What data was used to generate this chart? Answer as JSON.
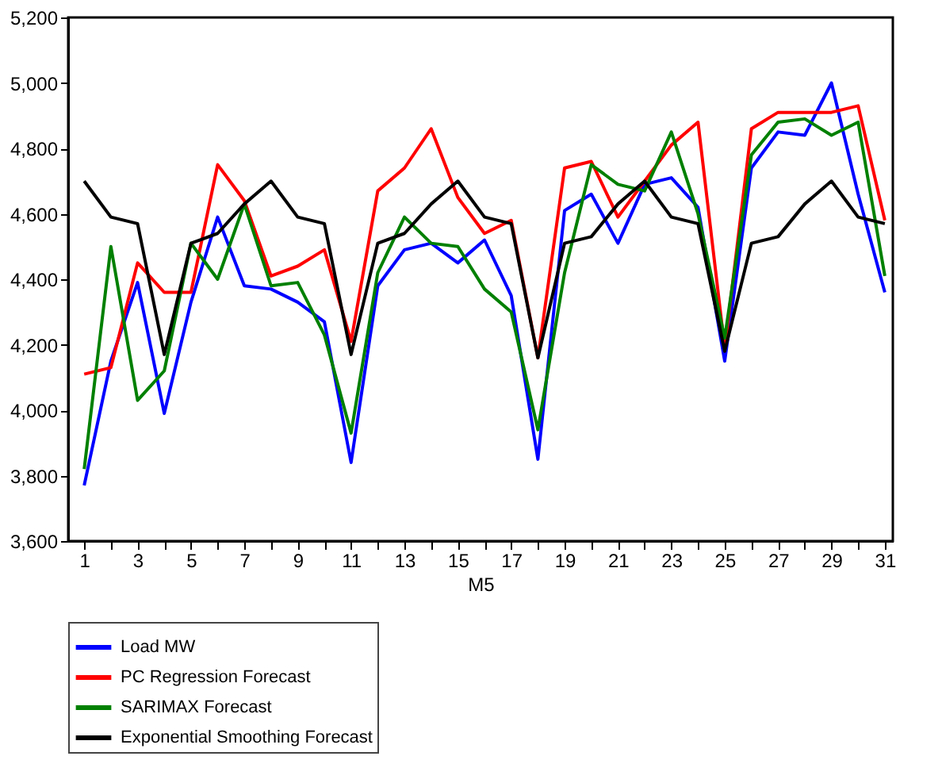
{
  "chart_data": {
    "type": "line",
    "xlabel": "M5",
    "x": [
      1,
      2,
      3,
      4,
      5,
      6,
      7,
      8,
      9,
      10,
      11,
      12,
      13,
      14,
      15,
      16,
      17,
      18,
      19,
      20,
      21,
      22,
      23,
      24,
      25,
      26,
      27,
      28,
      29,
      30,
      31
    ],
    "xlim": [
      0.4,
      31.3
    ],
    "xticks": [
      1,
      {
        "value": 2,
        "label": null
      },
      3,
      {
        "value": 4,
        "label": null
      },
      5,
      {
        "value": 6,
        "label": null
      },
      7,
      {
        "value": 8,
        "label": null
      },
      9,
      {
        "value": 10,
        "label": null
      },
      11,
      {
        "value": 12,
        "label": null
      },
      13,
      {
        "value": 14,
        "label": null
      },
      15,
      {
        "value": 16,
        "label": null
      },
      17,
      {
        "value": 18,
        "label": null
      },
      19,
      {
        "value": 20,
        "label": null
      },
      21,
      {
        "value": 22,
        "label": null
      },
      23,
      {
        "value": 24,
        "label": null
      },
      25,
      {
        "value": 26,
        "label": null
      },
      27,
      {
        "value": 28,
        "label": null
      },
      29,
      {
        "value": 30,
        "label": null
      },
      31
    ],
    "ylim": [
      3600,
      5200
    ],
    "yticks": [
      {
        "value": 3600,
        "label": "3,600"
      },
      {
        "value": 3800,
        "label": "3,800"
      },
      {
        "value": 4000,
        "label": "4,000"
      },
      {
        "value": 4200,
        "label": "4,200"
      },
      {
        "value": 4400,
        "label": "4,400"
      },
      {
        "value": 4600,
        "label": "4,600"
      },
      {
        "value": 4800,
        "label": "4,800"
      },
      {
        "value": 5000,
        "label": "5,000"
      },
      {
        "value": 5200,
        "label": "5,200"
      }
    ],
    "grid": false,
    "legend": "bottom",
    "marker": "none",
    "line_style": "solid",
    "series": [
      {
        "name": "Load MW",
        "color": "#0000ff",
        "values": [
          3770,
          4150,
          4390,
          3990,
          4330,
          4590,
          4380,
          4370,
          4330,
          4270,
          3840,
          4380,
          4490,
          4510,
          4450,
          4520,
          4350,
          3850,
          4610,
          4660,
          4510,
          4690,
          4710,
          4620,
          4150,
          4740,
          4850,
          4840,
          5000,
          4660,
          4360
        ]
      },
      {
        "name": "PC Regression Forecast",
        "color": "#ff0000",
        "values": [
          4110,
          4130,
          4450,
          4360,
          4360,
          4750,
          4640,
          4410,
          4440,
          4490,
          4210,
          4670,
          4740,
          4860,
          4650,
          4540,
          4580,
          4160,
          4740,
          4760,
          4590,
          4700,
          4810,
          4880,
          4190,
          4860,
          4910,
          4910,
          4910,
          4930,
          4580
        ]
      },
      {
        "name": "SARIMAX Forecast",
        "color": "#008000",
        "values": [
          3820,
          4500,
          4030,
          4120,
          4510,
          4400,
          4630,
          4380,
          4390,
          4230,
          3930,
          4420,
          4590,
          4510,
          4500,
          4370,
          4300,
          3940,
          4420,
          4750,
          4690,
          4670,
          4850,
          4600,
          4220,
          4780,
          4880,
          4890,
          4840,
          4880,
          4410
        ]
      },
      {
        "name": "Exponential Smoothing Forecast",
        "color": "#000000",
        "values": [
          4700,
          4590,
          4570,
          4170,
          4510,
          4540,
          4630,
          4700,
          4590,
          4570,
          4170,
          4510,
          4540,
          4630,
          4700,
          4590,
          4570,
          4160,
          4510,
          4530,
          4630,
          4700,
          4590,
          4570,
          4180,
          4510,
          4530,
          4630,
          4700,
          4590,
          4570
        ]
      }
    ]
  }
}
